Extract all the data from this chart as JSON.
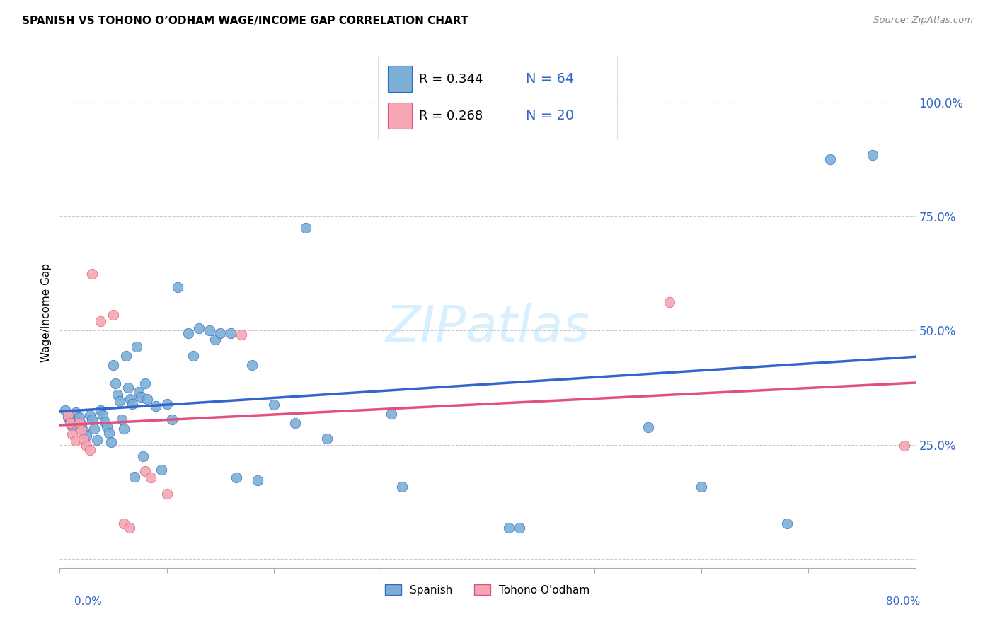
{
  "title": "SPANISH VS TOHONO O’ODHAM WAGE/INCOME GAP CORRELATION CHART",
  "source": "Source: ZipAtlas.com",
  "ylabel": "Wage/Income Gap",
  "xlim": [
    0.0,
    0.8
  ],
  "ylim": [
    -0.02,
    1.1
  ],
  "yticks": [
    0.0,
    0.25,
    0.5,
    0.75,
    1.0
  ],
  "ytick_labels": [
    "",
    "25.0%",
    "50.0%",
    "75.0%",
    "100.0%"
  ],
  "xticks": [
    0.0,
    0.1,
    0.2,
    0.3,
    0.4,
    0.5,
    0.6,
    0.7,
    0.8
  ],
  "legend_r_spanish": "R = 0.344",
  "legend_n_spanish": "N = 64",
  "legend_r_tohono": "R = 0.268",
  "legend_n_tohono": "N = 20",
  "spanish_color": "#7BAFD4",
  "tohono_color": "#F4A7B2",
  "trend_spanish_color": "#3366CC",
  "trend_tohono_color": "#E05080",
  "watermark": "ZIPatlas",
  "background_color": "#FFFFFF",
  "spanish_points": [
    [
      0.005,
      0.325
    ],
    [
      0.008,
      0.31
    ],
    [
      0.01,
      0.3
    ],
    [
      0.012,
      0.29
    ],
    [
      0.015,
      0.32
    ],
    [
      0.018,
      0.31
    ],
    [
      0.02,
      0.295
    ],
    [
      0.022,
      0.28
    ],
    [
      0.025,
      0.27
    ],
    [
      0.028,
      0.315
    ],
    [
      0.03,
      0.305
    ],
    [
      0.032,
      0.285
    ],
    [
      0.035,
      0.26
    ],
    [
      0.038,
      0.325
    ],
    [
      0.04,
      0.315
    ],
    [
      0.042,
      0.3
    ],
    [
      0.044,
      0.29
    ],
    [
      0.046,
      0.275
    ],
    [
      0.048,
      0.255
    ],
    [
      0.05,
      0.425
    ],
    [
      0.052,
      0.385
    ],
    [
      0.054,
      0.36
    ],
    [
      0.056,
      0.345
    ],
    [
      0.058,
      0.305
    ],
    [
      0.06,
      0.285
    ],
    [
      0.062,
      0.445
    ],
    [
      0.064,
      0.375
    ],
    [
      0.066,
      0.35
    ],
    [
      0.068,
      0.34
    ],
    [
      0.07,
      0.18
    ],
    [
      0.072,
      0.465
    ],
    [
      0.074,
      0.365
    ],
    [
      0.076,
      0.355
    ],
    [
      0.078,
      0.225
    ],
    [
      0.08,
      0.385
    ],
    [
      0.082,
      0.35
    ],
    [
      0.09,
      0.335
    ],
    [
      0.095,
      0.195
    ],
    [
      0.1,
      0.34
    ],
    [
      0.105,
      0.305
    ],
    [
      0.11,
      0.595
    ],
    [
      0.12,
      0.495
    ],
    [
      0.125,
      0.445
    ],
    [
      0.13,
      0.505
    ],
    [
      0.14,
      0.5
    ],
    [
      0.145,
      0.48
    ],
    [
      0.15,
      0.495
    ],
    [
      0.16,
      0.495
    ],
    [
      0.165,
      0.178
    ],
    [
      0.18,
      0.425
    ],
    [
      0.185,
      0.172
    ],
    [
      0.2,
      0.338
    ],
    [
      0.22,
      0.298
    ],
    [
      0.23,
      0.725
    ],
    [
      0.25,
      0.263
    ],
    [
      0.31,
      0.318
    ],
    [
      0.32,
      0.158
    ],
    [
      0.42,
      0.068
    ],
    [
      0.43,
      0.068
    ],
    [
      0.55,
      0.288
    ],
    [
      0.6,
      0.158
    ],
    [
      0.68,
      0.078
    ],
    [
      0.72,
      0.875
    ],
    [
      0.76,
      0.885
    ]
  ],
  "tohono_points": [
    [
      0.008,
      0.315
    ],
    [
      0.01,
      0.298
    ],
    [
      0.012,
      0.272
    ],
    [
      0.015,
      0.258
    ],
    [
      0.018,
      0.298
    ],
    [
      0.02,
      0.282
    ],
    [
      0.022,
      0.262
    ],
    [
      0.025,
      0.248
    ],
    [
      0.028,
      0.238
    ],
    [
      0.03,
      0.625
    ],
    [
      0.038,
      0.52
    ],
    [
      0.05,
      0.535
    ],
    [
      0.06,
      0.078
    ],
    [
      0.065,
      0.068
    ],
    [
      0.08,
      0.192
    ],
    [
      0.085,
      0.178
    ],
    [
      0.1,
      0.142
    ],
    [
      0.17,
      0.492
    ],
    [
      0.57,
      0.562
    ],
    [
      0.79,
      0.248
    ]
  ]
}
